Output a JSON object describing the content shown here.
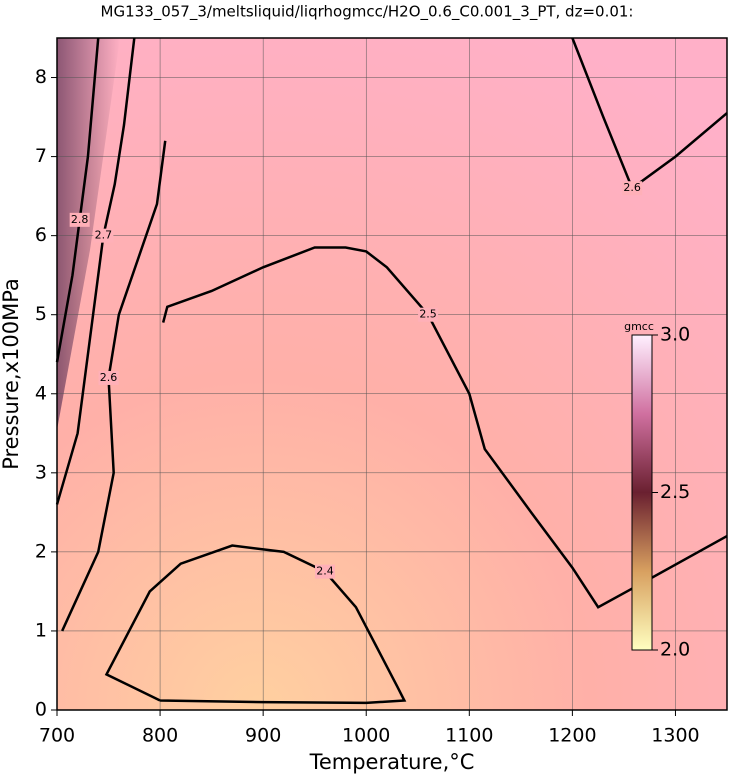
{
  "chart_data": {
    "type": "contour",
    "title": "MG133_057_3/meltsliquid/liqrhogmcc/H2O_0.6_C0.001_3_PT, dz=0.01:",
    "x_label": "Temperature,°C",
    "y_label": "Pressure,x100MPa",
    "xlim": [
      700,
      1350
    ],
    "ylim": [
      0,
      8.5
    ],
    "xticks": [
      700,
      800,
      900,
      1000,
      1100,
      1200,
      1300
    ],
    "yticks": [
      0,
      1,
      2,
      3,
      4,
      5,
      6,
      7,
      8
    ],
    "grid": true,
    "series": [
      {
        "level": 2.4,
        "color": "#000000",
        "x": [
          800,
          748,
          770,
          790,
          820,
          870,
          920,
          960,
          990,
          1010,
          1030,
          1037,
          1000,
          900,
          800
        ],
        "y": [
          0.12,
          0.45,
          1.0,
          1.5,
          1.85,
          2.08,
          2.0,
          1.75,
          1.3,
          0.8,
          0.3,
          0.12,
          0.09,
          0.1,
          0.12
        ]
      },
      {
        "level": 2.5,
        "color": "#000000",
        "x": [
          803,
          807,
          850,
          900,
          950,
          980,
          1000,
          1020,
          1060,
          1100,
          1115,
          1160,
          1200,
          1225,
          1260,
          1350
        ],
        "y": [
          4.9,
          5.1,
          5.3,
          5.6,
          5.85,
          5.85,
          5.8,
          5.6,
          5.0,
          4.0,
          3.3,
          2.5,
          1.8,
          1.3,
          1.55,
          2.2
        ]
      },
      {
        "level": 2.6,
        "color": "#000000",
        "x": [
          705,
          740,
          755,
          750,
          760,
          797,
          805
        ],
        "y": [
          1.0,
          2.0,
          3.0,
          4.2,
          5.0,
          6.4,
          7.2
        ]
      },
      {
        "level": 2.7,
        "color": "#000000",
        "x": [
          700,
          720,
          734,
          745,
          756,
          765,
          775
        ],
        "y": [
          2.6,
          3.5,
          4.9,
          6.0,
          6.65,
          7.4,
          8.5
        ]
      },
      {
        "level": 2.8,
        "color": "#000000",
        "x": [
          700,
          715,
          722,
          730,
          740
        ],
        "y": [
          4.4,
          5.5,
          6.2,
          7.0,
          8.5
        ]
      },
      {
        "level": 2.6,
        "color": "#000000",
        "x": [
          1200,
          1230,
          1258,
          1300,
          1350
        ],
        "y": [
          8.5,
          7.5,
          6.6,
          7.0,
          7.55
        ]
      }
    ],
    "colorbar": {
      "label": "gmcc",
      "lim": [
        2.0,
        3.0
      ],
      "ticks": [
        {
          "value": 2.0,
          "label": "2.0"
        },
        2.5,
        {
          "value": 3.0,
          "label": "3.0"
        }
      ],
      "colors": [
        "#ffffc0",
        "#d8a060",
        "#6a2030",
        "#d070a0",
        "#fff0ff"
      ]
    }
  }
}
